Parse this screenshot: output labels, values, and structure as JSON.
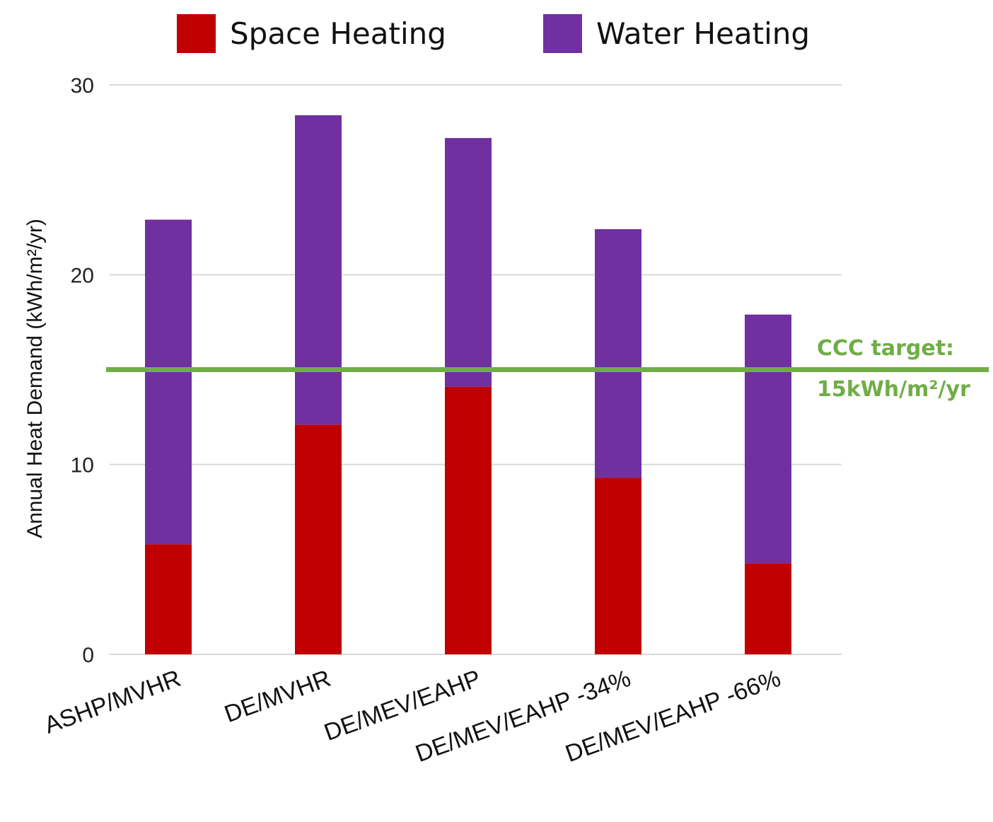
{
  "chart_data": {
    "type": "bar",
    "stacked": true,
    "categories": [
      "ASHP/MVHR",
      "DE/MVHR",
      "DE/MEV/EAHP",
      "DE/MEV/EAHP -34%",
      "DE/MEV/EAHP -66%"
    ],
    "series": [
      {
        "name": "Space Heating",
        "color": "#c00000",
        "values": [
          5.8,
          12.1,
          14.1,
          9.3,
          4.8
        ]
      },
      {
        "name": "Water Heating",
        "color": "#7030a0",
        "values": [
          17.1,
          16.3,
          13.1,
          13.1,
          13.1
        ]
      }
    ],
    "ylabel": "Annual Heat Demand (kWh/m²/yr)",
    "xlabel": "",
    "ylim": [
      0,
      30
    ],
    "yticks": [
      0,
      10,
      20,
      30
    ],
    "grid": true,
    "legend": "top",
    "reference_line": {
      "value": 15,
      "color": "#70ad47",
      "label_line1": "CCC target:",
      "label_line2": "15kWh/m²/yr"
    }
  }
}
